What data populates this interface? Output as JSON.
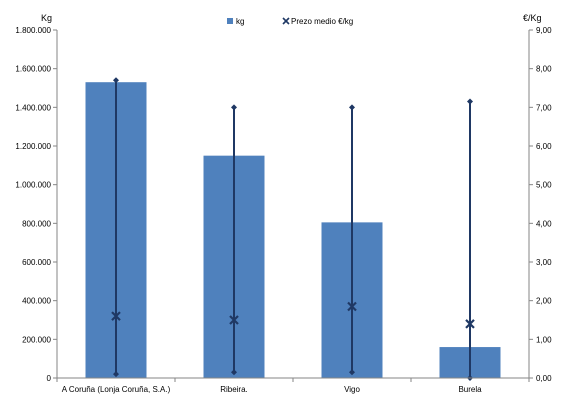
{
  "chart_data": {
    "type": "bar",
    "categories": [
      "A Coruña (Lonja Coruña, S.A.)",
      "Ribeira.",
      "Vigo",
      "Burela"
    ],
    "series": [
      {
        "name": "kg",
        "axis": "left",
        "type": "bar",
        "color": "#4F81BD",
        "values": [
          1530000,
          1150000,
          805000,
          160000
        ]
      },
      {
        "name": "Prezo medio €/kg",
        "axis": "right",
        "type": "scatter-range",
        "color": "#1F3864",
        "values": [
          1.6,
          1.5,
          1.85,
          1.4
        ],
        "max": [
          7.7,
          7.0,
          7.0,
          7.15
        ],
        "min": [
          0.1,
          0.15,
          0.15,
          0.0
        ]
      }
    ],
    "ylabel": "Kg",
    "y2label": "€/Kg",
    "ylim": [
      0,
      1800000
    ],
    "y2lim": [
      0,
      9
    ],
    "yticks": [
      "0",
      "200.000",
      "400.000",
      "600.000",
      "800.000",
      "1.000.000",
      "1.200.000",
      "1.400.000",
      "1.600.000",
      "1.800.000"
    ],
    "y2ticks": [
      "0,00",
      "1,00",
      "2,00",
      "3,00",
      "4,00",
      "5,00",
      "6,00",
      "7,00",
      "8,00",
      "9,00"
    ],
    "legend": "top-center"
  }
}
